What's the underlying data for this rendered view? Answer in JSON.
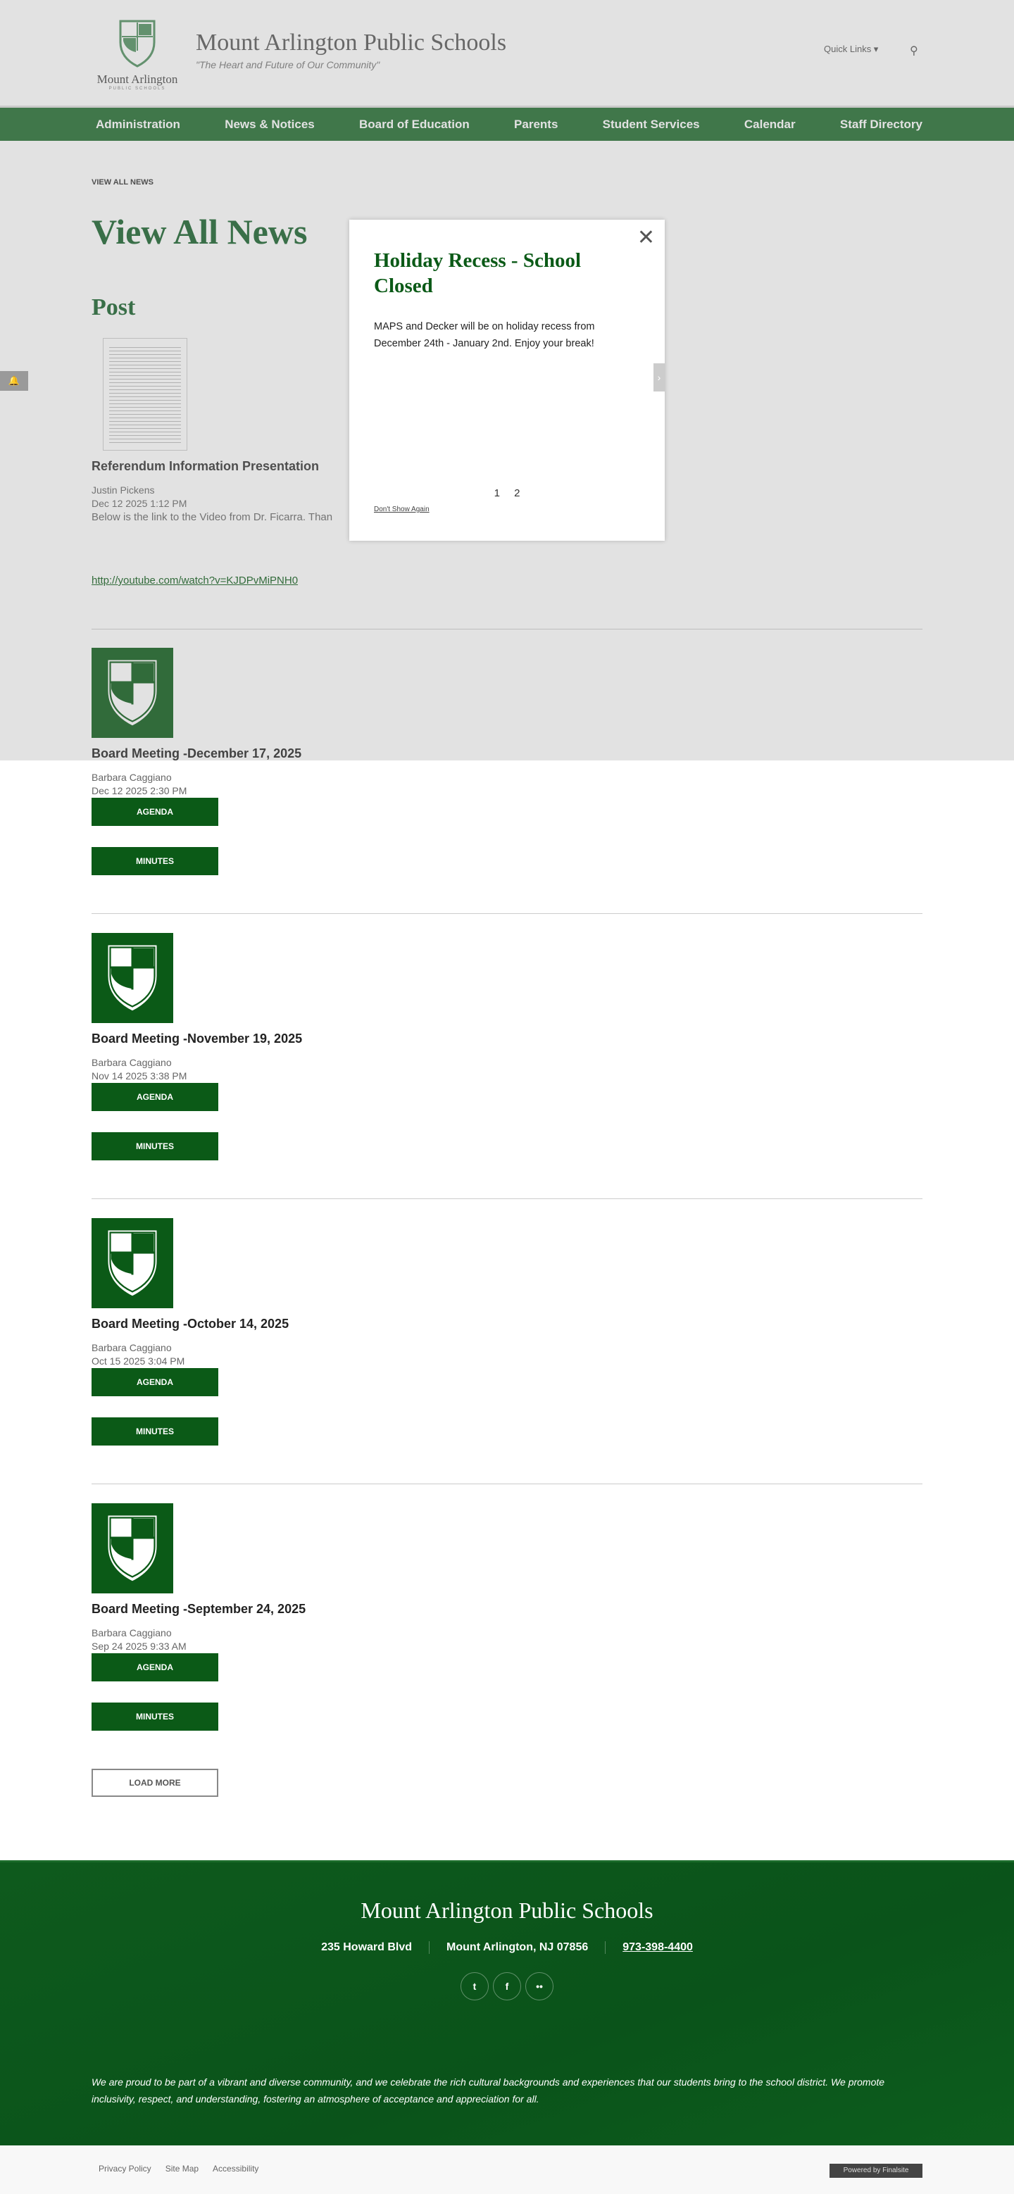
{
  "header": {
    "logo_name": "Mount Arlington",
    "logo_sub": "PUBLIC SCHOOLS",
    "title": "Mount Arlington Public Schools",
    "tagline": "\"The Heart and Future of Our Community\"",
    "quick_links": "Quick Links ▾",
    "search_icon": "search-icon"
  },
  "nav": [
    "Administration",
    "News & Notices",
    "Board of Education",
    "Parents",
    "Student Services",
    "Calendar",
    "Staff Directory"
  ],
  "breadcrumb": "VIEW ALL NEWS",
  "page_title": "View All News",
  "section_title": "Post",
  "featured": {
    "title": "Referendum Information Presentation",
    "author": "Justin Pickens",
    "date": "Dec 12 2025 1:12 PM",
    "excerpt": "Below is the link to the Video from Dr. Ficarra.  Than",
    "link": "http://youtube.com/watch?v=KJDPvMiPNH0"
  },
  "posts": [
    {
      "title": "Board Meeting -December 17, 2025",
      "author": "Barbara Caggiano",
      "date": "Dec 12 2025 2:30 PM",
      "agenda": "AGENDA",
      "minutes": "MINUTES"
    },
    {
      "title": "Board Meeting -November 19, 2025",
      "author": "Barbara Caggiano",
      "date": "Nov 14 2025 3:38 PM",
      "agenda": "AGENDA",
      "minutes": "MINUTES"
    },
    {
      "title": "Board Meeting -October 14, 2025",
      "author": "Barbara Caggiano",
      "date": "Oct 15 2025 3:04 PM",
      "agenda": "AGENDA",
      "minutes": "MINUTES"
    },
    {
      "title": "Board Meeting -September 24, 2025",
      "author": "Barbara Caggiano",
      "date": "Sep 24 2025 9:33 AM",
      "agenda": "AGENDA",
      "minutes": "MINUTES"
    }
  ],
  "load_more": "LOAD MORE",
  "modal": {
    "title": "Holiday Recess - School Closed",
    "body": "MAPS and Decker will be on holiday recess from December 24th - January 2nd. Enjoy your break!",
    "pages": [
      "1",
      "2"
    ],
    "dont_show": "Don't Show Again",
    "close": "✕"
  },
  "footer": {
    "title": "Mount Arlington Public Schools",
    "address": "235 Howard Blvd",
    "city": "Mount Arlington, NJ  07856",
    "phone": "973-398-4400",
    "social": [
      "twitter",
      "facebook",
      "flickr"
    ],
    "mission": "We are proud to be part of a vibrant and diverse community, and we celebrate the rich cultural backgrounds and experiences that our students bring to the school district. We promote inclusivity, respect, and understanding, fostering an atmosphere of acceptance and appreciation for all.",
    "links": [
      "Privacy Policy",
      "Site Map",
      "Accessibility"
    ],
    "powered": "Powered by Finalsite"
  },
  "colors": {
    "brand_green": "#0b5a17",
    "nav_green": "#1f6b2d"
  }
}
